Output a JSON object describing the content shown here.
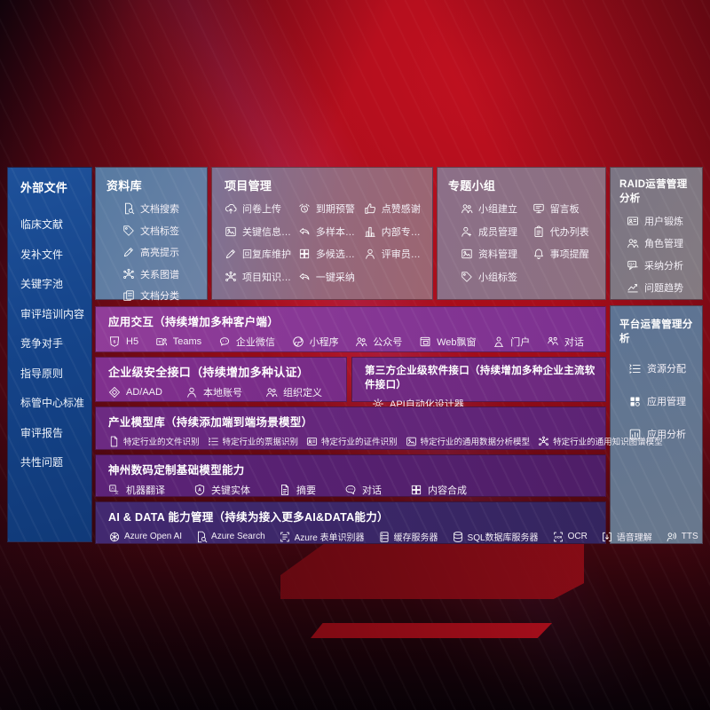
{
  "sidebar": {
    "title": "外部文件",
    "items": [
      "临床文献",
      "发补文件",
      "关键字池",
      "审评培训内容",
      "竞争对手",
      "指导原则",
      "标管中心标准",
      "审评报告",
      "共性问题"
    ]
  },
  "library": {
    "title": "资料库",
    "items": [
      {
        "label": "文档搜索",
        "icon": "doc-search"
      },
      {
        "label": "文档标签",
        "icon": "tag"
      },
      {
        "label": "高亮提示",
        "icon": "pencil"
      },
      {
        "label": "关系图谱",
        "icon": "graph"
      },
      {
        "label": "文档分类",
        "icon": "copy"
      }
    ]
  },
  "project": {
    "title": "项目管理",
    "items": [
      {
        "label": "问卷上传",
        "icon": "cloud-up"
      },
      {
        "label": "到期预警",
        "icon": "alarm"
      },
      {
        "label": "点赞感谢",
        "icon": "thumb"
      },
      {
        "label": "关键信息提取",
        "icon": "image"
      },
      {
        "label": "多样本候选",
        "icon": "reply"
      },
      {
        "label": "内部专家排名",
        "icon": "rank"
      },
      {
        "label": "回复库维护",
        "icon": "pencil"
      },
      {
        "label": "多候选生成",
        "icon": "puzzle"
      },
      {
        "label": "评审员画像",
        "icon": "person"
      },
      {
        "label": "项目知识图谱",
        "icon": "graph"
      },
      {
        "label": "一键采纳",
        "icon": "reply"
      }
    ]
  },
  "group": {
    "title": "专题小组",
    "items": [
      {
        "label": "小组建立",
        "icon": "people"
      },
      {
        "label": "留言板",
        "icon": "board"
      },
      {
        "label": "成员管理",
        "icon": "person-add"
      },
      {
        "label": "代办列表",
        "icon": "clipboard"
      },
      {
        "label": "资料管理",
        "icon": "image"
      },
      {
        "label": "事项提醒",
        "icon": "bell"
      },
      {
        "label": "小组标签",
        "icon": "tag"
      }
    ]
  },
  "raid": {
    "title": "RAID运营管理分析",
    "items": [
      {
        "label": "用户锻炼",
        "icon": "card"
      },
      {
        "label": "角色管理",
        "icon": "people"
      },
      {
        "label": "采纳分析",
        "icon": "chat-qa"
      },
      {
        "label": "问题趋势",
        "icon": "trend"
      }
    ]
  },
  "platform": {
    "title": "平台运营管理分析",
    "items": [
      {
        "label": "资源分配",
        "icon": "list"
      },
      {
        "label": "应用管理",
        "icon": "grid"
      },
      {
        "label": "应用分析",
        "icon": "chart"
      }
    ]
  },
  "interact": {
    "title": "应用交互（持续增加多种客户端）",
    "items": [
      {
        "label": "H5",
        "icon": "h5"
      },
      {
        "label": "Teams",
        "icon": "teams"
      },
      {
        "label": "企业微信",
        "icon": "wechat"
      },
      {
        "label": "小程序",
        "icon": "mini"
      },
      {
        "label": "公众号",
        "icon": "people"
      },
      {
        "label": "Web飘窗",
        "icon": "window"
      },
      {
        "label": "门户",
        "icon": "portal"
      },
      {
        "label": "对话",
        "icon": "dialog"
      }
    ]
  },
  "security": {
    "title": "企业级安全接口（持续增加多种认证）",
    "items": [
      {
        "label": "AD/AAD",
        "icon": "ad"
      },
      {
        "label": "本地账号",
        "icon": "person"
      },
      {
        "label": "组织定义",
        "icon": "people"
      }
    ]
  },
  "third_party": {
    "title": "第三方企业级软件接口（持续增加多种企业主流软件接口）",
    "items": [
      {
        "label": "API自动化设计器",
        "icon": "gear"
      }
    ]
  },
  "industry": {
    "title": "产业模型库（持续添加端到端场景模型）",
    "items": [
      {
        "label": "特定行业的文件识别",
        "icon": "doc"
      },
      {
        "label": "特定行业的票据识别",
        "icon": "list"
      },
      {
        "label": "特定行业的证件识别",
        "icon": "card"
      },
      {
        "label": "特定行业的通用数据分析模型",
        "icon": "image"
      },
      {
        "label": "特定行业的通用知识图谱模型",
        "icon": "graph"
      }
    ]
  },
  "dcits": {
    "title": "神州数码定制基础模型能力",
    "items": [
      {
        "label": "机器翻译",
        "icon": "translate"
      },
      {
        "label": "关键实体",
        "icon": "shield-a"
      },
      {
        "label": "摘要",
        "icon": "summary"
      },
      {
        "label": "对话",
        "icon": "bubble"
      },
      {
        "label": "内容合成",
        "icon": "puzzle"
      }
    ]
  },
  "aidata": {
    "title": "AI & DATA 能力管理（持续为接入更多AI&DATA能力）",
    "items": [
      {
        "label": "Azure Open AI",
        "icon": "flower"
      },
      {
        "label": "Azure Search",
        "icon": "doc-search"
      },
      {
        "label": "Azure 表单识别器",
        "icon": "form"
      },
      {
        "label": "缓存服务器",
        "icon": "server"
      },
      {
        "label": "SQL数据库服务器",
        "icon": "db"
      },
      {
        "label": "OCR",
        "icon": "ocr"
      },
      {
        "label": "语音理解",
        "icon": "voice"
      },
      {
        "label": "TTS",
        "icon": "tts"
      }
    ]
  },
  "colors": {
    "background_red": "#a50d1a",
    "sidebar_blue": "#15448a",
    "interact_purple": "#863794",
    "aidata_indigo": "#3b2868",
    "library_blue_gray": "#607a9f",
    "text_white": "#ffffff"
  }
}
